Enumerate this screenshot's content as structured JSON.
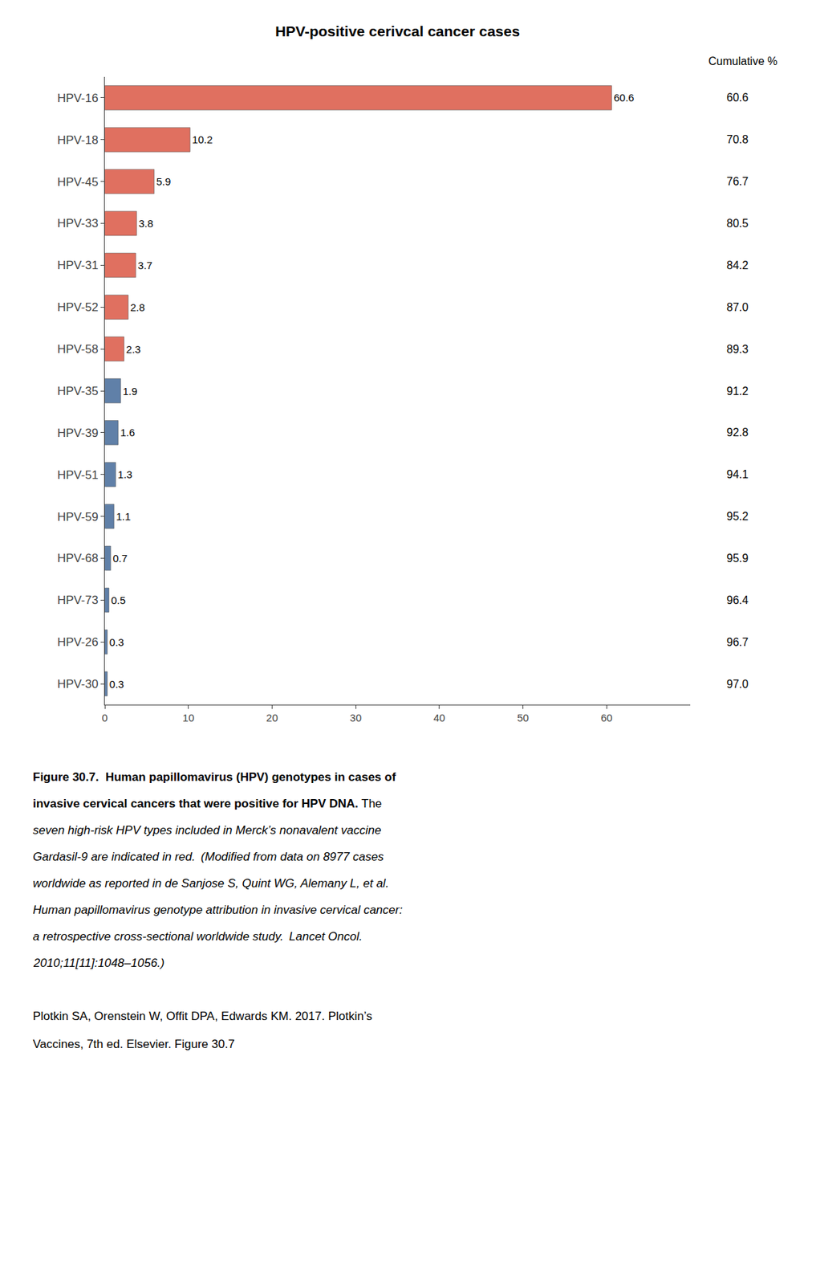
{
  "chart_data": {
    "type": "bar",
    "orientation": "horizontal",
    "title": "HPV-positive cerivcal cancer cases",
    "categories": [
      "HPV-16",
      "HPV-18",
      "HPV-45",
      "HPV-33",
      "HPV-31",
      "HPV-52",
      "HPV-58",
      "HPV-35",
      "HPV-39",
      "HPV-51",
      "HPV-59",
      "HPV-68",
      "HPV-73",
      "HPV-26",
      "HPV-30"
    ],
    "values": [
      60.6,
      10.2,
      5.9,
      3.8,
      3.7,
      2.8,
      2.3,
      1.9,
      1.6,
      1.3,
      1.1,
      0.7,
      0.5,
      0.3,
      0.3
    ],
    "colors": [
      "#E07060",
      "#E07060",
      "#E07060",
      "#E07060",
      "#E07060",
      "#E07060",
      "#E07060",
      "#6080A8",
      "#6080A8",
      "#6080A8",
      "#6080A8",
      "#6080A8",
      "#6080A8",
      "#6080A8",
      "#6080A8"
    ],
    "data_labels": true,
    "xlim": [
      0,
      70
    ],
    "xticks": [
      0,
      10,
      20,
      30,
      40,
      50,
      60
    ],
    "grid": false,
    "cumulative_label": "Cumulative %",
    "cumulative": [
      "60.6",
      "70.8",
      "76.7",
      "80.5",
      "84.2",
      "87.0",
      "89.3",
      "91.2",
      "92.8",
      "94.1",
      "95.2",
      "95.9",
      "96.4",
      "96.7",
      "97.0"
    ],
    "caption_bold": [
      "Figure 30.7.  Human papillomavirus (HPV) genotypes in cases of",
      "invasive cervical cancers that were positive for HPV DNA."
    ],
    "caption_italic": [
      "The",
      "seven high-risk HPV types included in Merck’s nonavalent vaccine",
      "Gardasil-9 are indicated in red.  (Modified from data on 8977 cases",
      "worldwide as reported in de Sanjose S, Quint WG, Alemany L, et al.",
      "Human papillomavirus genotype attribution in invasive cervical cancer:",
      "a retrospective cross-sectional worldwide study.  Lancet Oncol.",
      "2010;11[11]:1048–1056.)"
    ],
    "references": [
      "Plotkin SA, Orenstein W, Offit DPA, Edwards KM. 2017. Plotkin’s",
      "Vaccines, 7th ed. Elsevier. Figure 30.7"
    ]
  }
}
